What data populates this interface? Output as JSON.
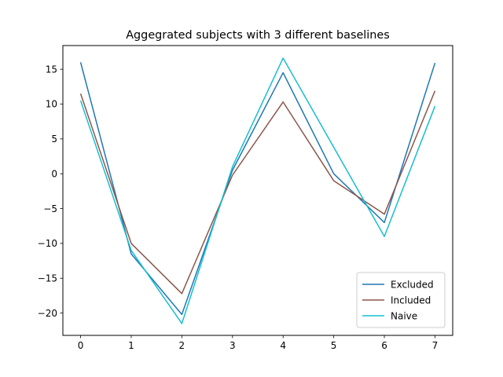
{
  "chart_data": {
    "type": "line",
    "title": "Aggegrated subjects with 3 different baselines",
    "xlabel": "",
    "ylabel": "",
    "x": [
      0,
      1,
      2,
      3,
      4,
      5,
      6,
      7
    ],
    "xlim": [
      -0.35,
      7.35
    ],
    "ylim": [
      -23.2,
      18.4
    ],
    "xticks": [
      0,
      1,
      2,
      3,
      4,
      5,
      6,
      7
    ],
    "yticks": [
      -20,
      -15,
      -10,
      -5,
      0,
      5,
      10,
      15
    ],
    "ytick_labels": [
      "−20",
      "−15",
      "−10",
      "−5",
      "0",
      "5",
      "10",
      "15"
    ],
    "grid": false,
    "legend_position": "lower-right",
    "series": [
      {
        "name": "Excluded",
        "color": "#1f77b4",
        "values": [
          16.0,
          -11.5,
          -20.2,
          0.5,
          14.5,
          0.0,
          -7.0,
          15.9
        ]
      },
      {
        "name": "Included",
        "color": "#8c564b",
        "values": [
          11.5,
          -10.0,
          -17.2,
          -0.2,
          10.3,
          -1.0,
          -5.8,
          11.9
        ]
      },
      {
        "name": "Naive",
        "color": "#17becf",
        "values": [
          10.5,
          -11.0,
          -21.5,
          1.0,
          16.6,
          3.8,
          -9.0,
          9.7
        ]
      }
    ]
  }
}
